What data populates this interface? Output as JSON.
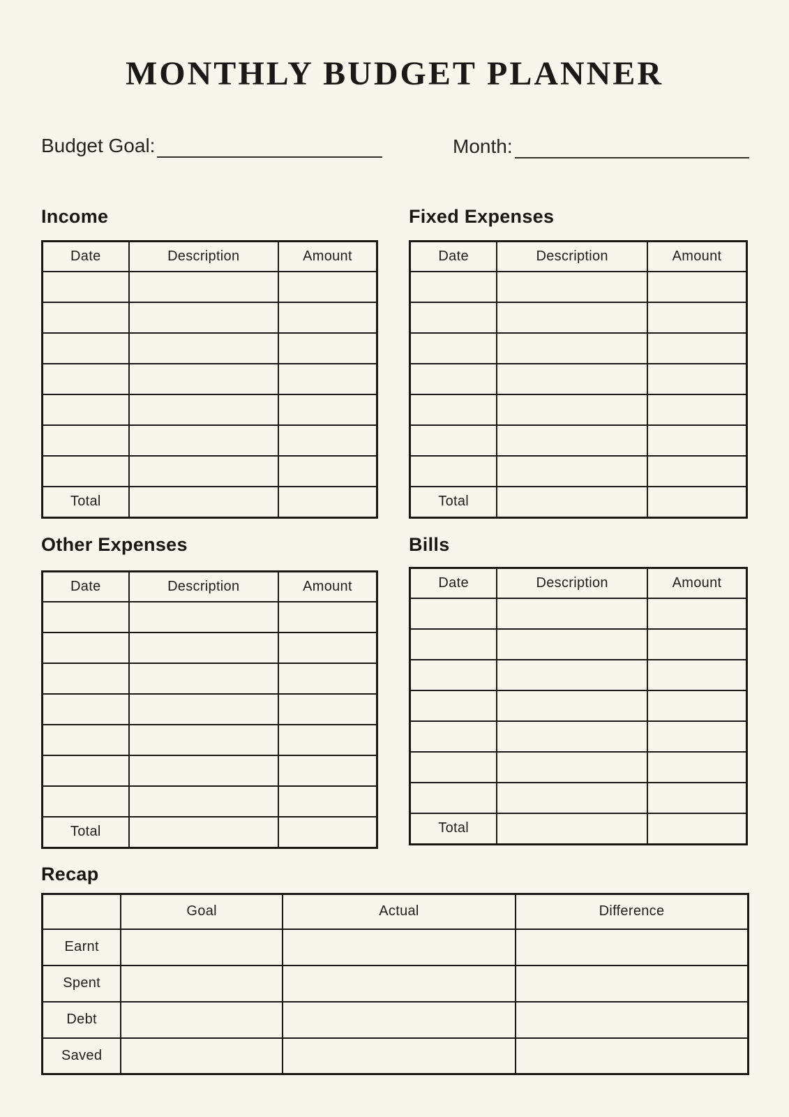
{
  "title": "MONTHLY BUDGET PLANNER",
  "fields": {
    "budget_goal": {
      "label": "Budget Goal:",
      "value": ""
    },
    "month": {
      "label": "Month:",
      "value": ""
    }
  },
  "sections": {
    "income": {
      "heading": "Income"
    },
    "fixed_expenses": {
      "heading": "Fixed Expenses"
    },
    "other_expenses": {
      "heading": "Other Expenses"
    },
    "bills": {
      "heading": "Bills"
    }
  },
  "entry_table": {
    "headers": [
      "Date",
      "Description",
      "Amount"
    ],
    "empty_rows": 7,
    "total_label": "Total"
  },
  "recap": {
    "heading": "Recap",
    "headers": [
      "",
      "Goal",
      "Actual",
      "Difference"
    ],
    "rows": [
      {
        "label": "Earnt"
      },
      {
        "label": "Spent"
      },
      {
        "label": "Debt"
      },
      {
        "label": "Saved"
      }
    ]
  },
  "colors": {
    "page_background": "#f8f5ec",
    "ink": "#191713"
  }
}
